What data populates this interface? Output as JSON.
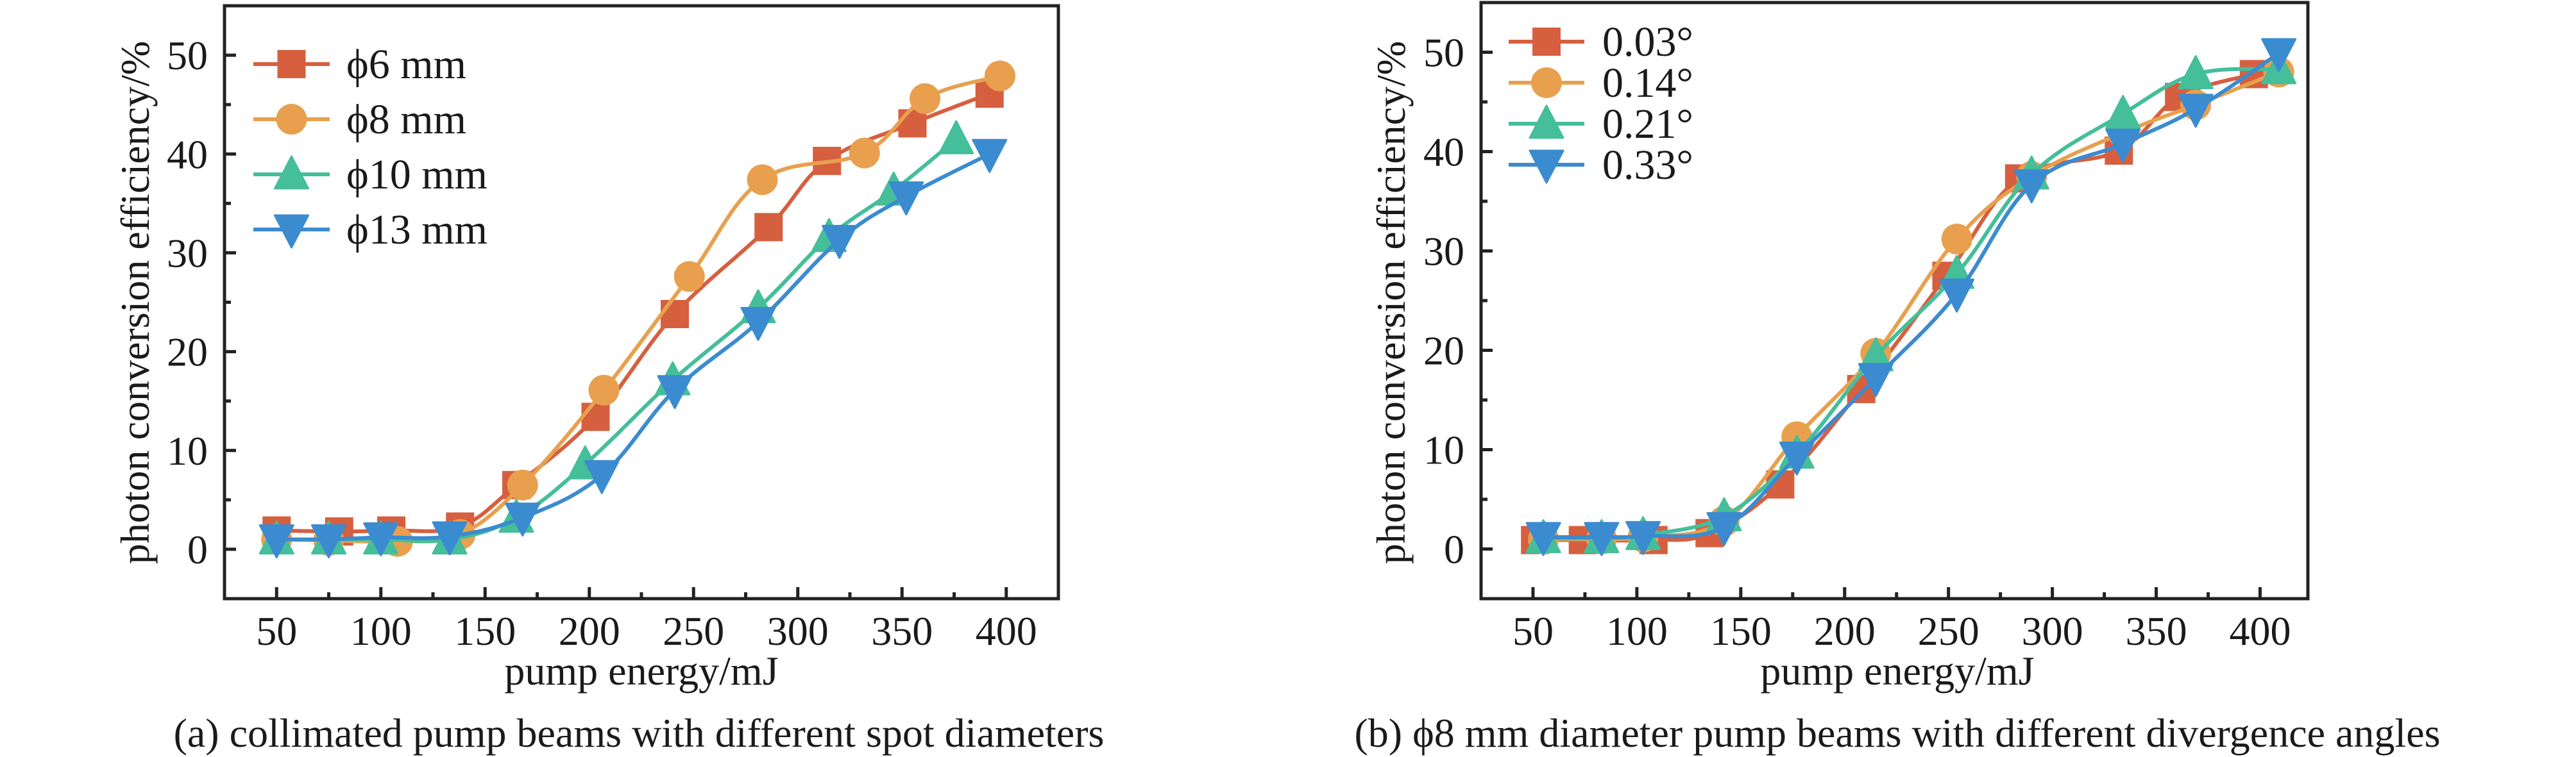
{
  "figure": {
    "panels": [
      "a",
      "b"
    ]
  },
  "chart_data": [
    {
      "id": "a",
      "type": "line",
      "title": "",
      "caption": "(a) collimated pump beams with different spot diameters",
      "xlabel": "pump energy/mJ",
      "ylabel": "photon conversion efficiency/%",
      "xlim": [
        25,
        425
      ],
      "ylim": [
        -5,
        55
      ],
      "xticks": [
        50,
        100,
        150,
        200,
        250,
        300,
        350,
        400
      ],
      "yticks": [
        0,
        10,
        20,
        30,
        40,
        50
      ],
      "grid": false,
      "legend_position": "top-left",
      "series": [
        {
          "name": "ϕ6 mm",
          "color": "#D65F3F",
          "marker": "square",
          "x": [
            50,
            80,
            105,
            138,
            165,
            203,
            241,
            286,
            314,
            355,
            392
          ],
          "y": [
            1.9,
            1.8,
            1.9,
            2.3,
            6.5,
            13.4,
            23.8,
            32.6,
            39.3,
            43.1,
            46.1
          ]
        },
        {
          "name": "ϕ8 mm",
          "color": "#E8A04E",
          "marker": "circle",
          "x": [
            50,
            75,
            108,
            138,
            168,
            207,
            248,
            283,
            332,
            361,
            397
          ],
          "y": [
            1.0,
            0.9,
            0.8,
            1.5,
            6.5,
            16.1,
            27.6,
            37.4,
            40.1,
            45.6,
            47.9
          ]
        },
        {
          "name": "ϕ10 mm",
          "color": "#45BE9A",
          "marker": "triangle-up",
          "x": [
            50,
            75,
            100,
            133,
            165,
            198,
            240,
            281,
            315,
            346,
            376
          ],
          "y": [
            1.0,
            1.0,
            1.0,
            1.0,
            3.2,
            8.6,
            17.1,
            24.4,
            31.6,
            36.3,
            41.5
          ]
        },
        {
          "name": "ϕ13 mm",
          "color": "#3B8BD0",
          "marker": "triangle-down",
          "x": [
            50,
            75,
            100,
            133,
            168,
            206,
            241,
            281,
            320,
            352,
            392
          ],
          "y": [
            1.0,
            1.0,
            1.2,
            1.3,
            3.2,
            7.5,
            16.1,
            23.0,
            31.3,
            35.7,
            40.0
          ]
        }
      ]
    },
    {
      "id": "b",
      "type": "line",
      "title": "",
      "caption": "(b) ϕ8 mm diameter pump beams with different divergence angles",
      "xlabel": "pump energy/mJ",
      "ylabel": "photon conversion efficiency/%",
      "xlim": [
        25,
        423
      ],
      "ylim": [
        -5,
        55
      ],
      "xticks": [
        50,
        100,
        150,
        200,
        250,
        300,
        350,
        400
      ],
      "yticks": [
        0,
        10,
        20,
        30,
        40,
        50
      ],
      "grid": false,
      "legend_position": "top-left",
      "series": [
        {
          "name": "0.03°",
          "color": "#D65F3F",
          "marker": "square",
          "x": [
            51,
            74,
            108,
            135,
            169,
            208,
            249,
            284,
            332,
            361,
            397
          ],
          "y": [
            0.9,
            0.9,
            0.9,
            1.6,
            6.5,
            16.1,
            27.5,
            37.3,
            40.1,
            45.5,
            47.8
          ]
        },
        {
          "name": "0.14°",
          "color": "#E8A04E",
          "marker": "circle",
          "x": [
            55,
            83,
            103,
            142,
            177,
            215,
            254,
            290,
            334,
            369,
            409
          ],
          "y": [
            1.0,
            1.0,
            1.2,
            2.8,
            11.3,
            19.7,
            31.2,
            37.5,
            41.9,
            44.7,
            48.0
          ]
        },
        {
          "name": "0.21°",
          "color": "#45BE9A",
          "marker": "triangle-up",
          "x": [
            55,
            83,
            103,
            142,
            177,
            215,
            254,
            290,
            334,
            369,
            409
          ],
          "y": [
            1.1,
            1.1,
            1.4,
            3.3,
            9.6,
            19.4,
            27.7,
            37.7,
            43.8,
            47.8,
            48.3
          ]
        },
        {
          "name": "0.33°",
          "color": "#3B8BD0",
          "marker": "triangle-down",
          "x": [
            55,
            83,
            103,
            142,
            177,
            215,
            254,
            290,
            334,
            369,
            409
          ],
          "y": [
            1.2,
            1.2,
            1.3,
            2.2,
            9.3,
            17.2,
            25.7,
            36.7,
            40.8,
            44.3,
            49.9
          ]
        }
      ]
    }
  ]
}
